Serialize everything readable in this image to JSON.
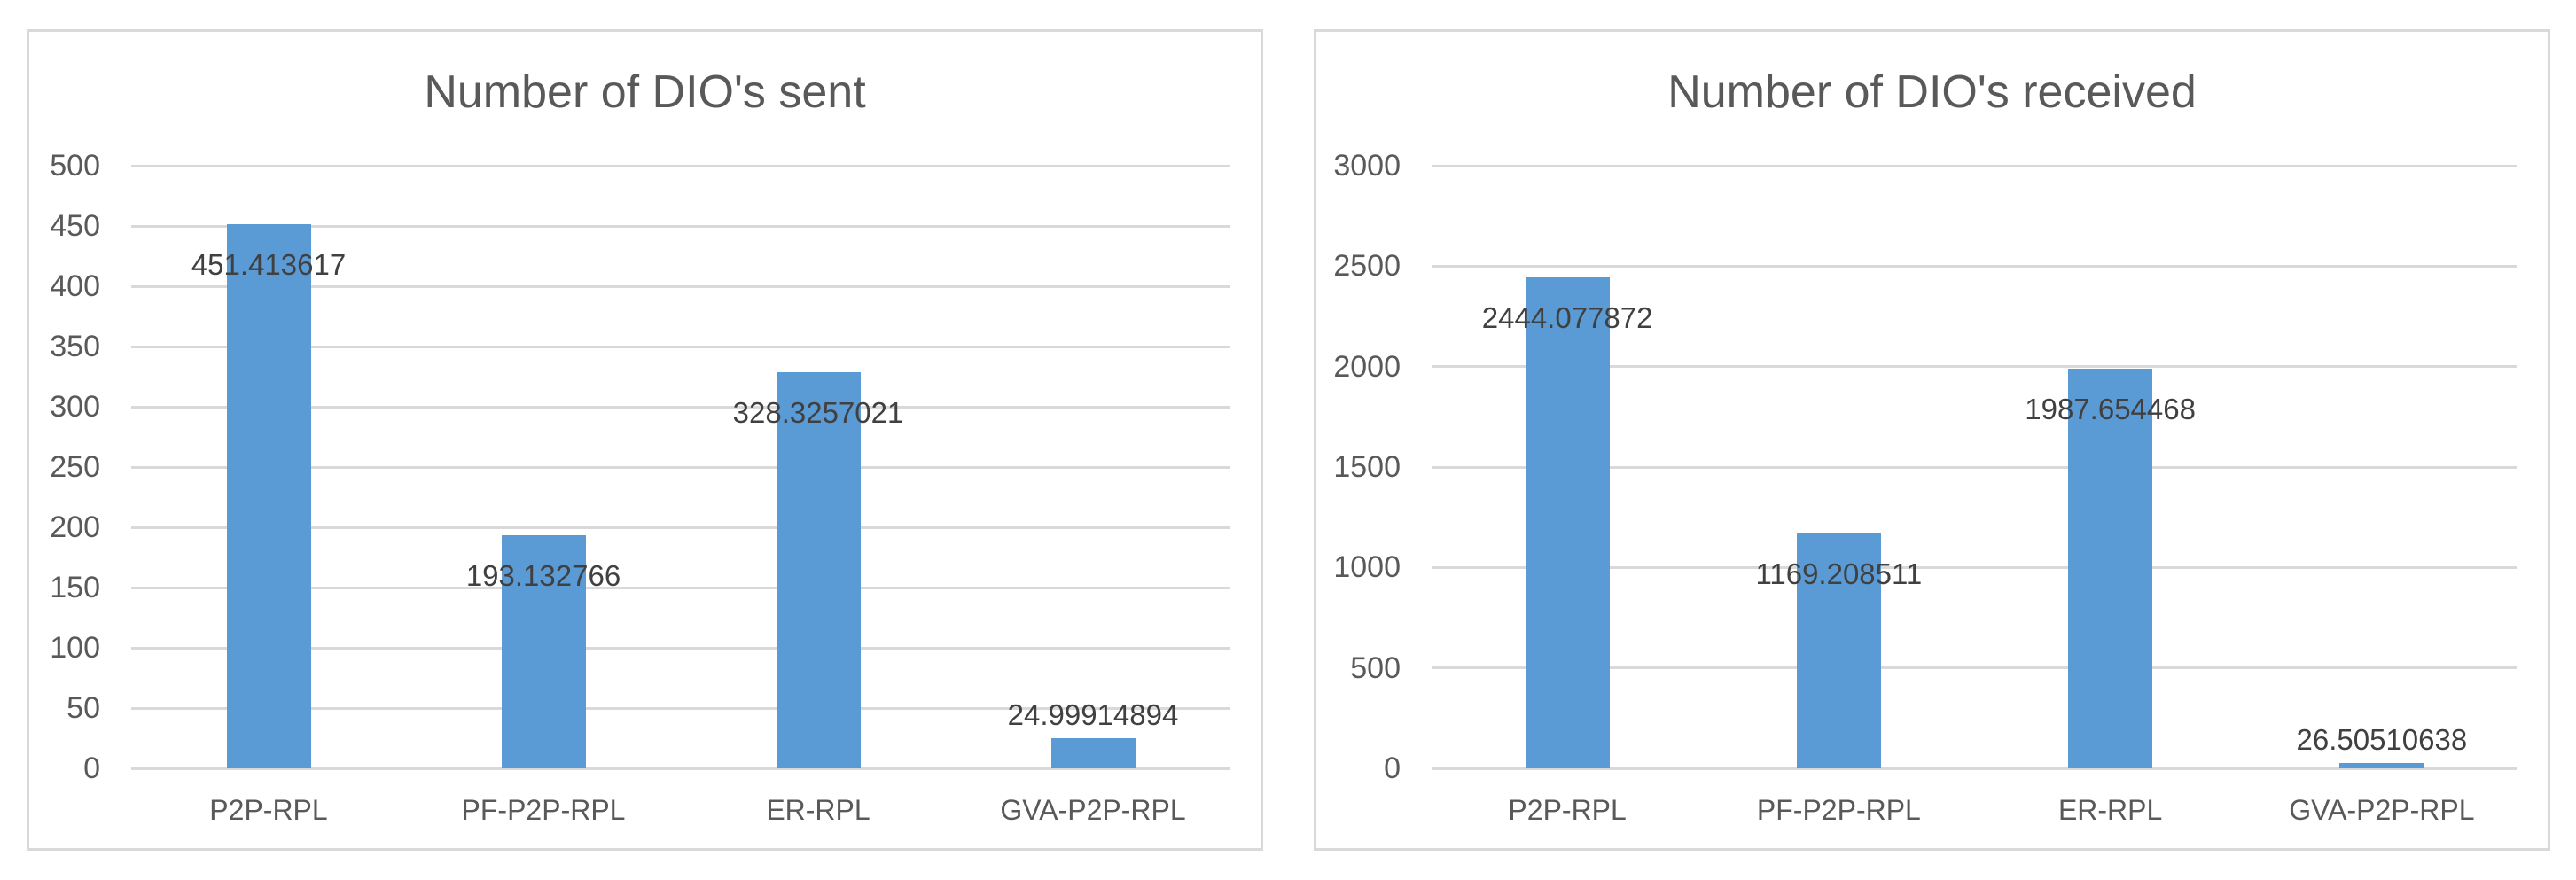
{
  "style": {
    "bar_color": "#5B9BD5",
    "gridline_color": "#D9D9D9",
    "panel_border_color": "#D9D9D9",
    "title_color": "#595959",
    "axis_text_color": "#595959",
    "data_label_color": "#404040",
    "background_color": "#FFFFFF"
  },
  "chart_data": [
    {
      "type": "bar",
      "title": "Number of DIO's sent",
      "categories": [
        "P2P-RPL",
        "PF-P2P-RPL",
        "ER-RPL",
        "GVA-P2P-RPL"
      ],
      "series": [
        {
          "name": "Number of DIO's sent",
          "values": [
            451.413617,
            193.132766,
            328.3257021,
            24.99914894
          ]
        }
      ],
      "value_labels": [
        "451.413617",
        "193.132766",
        "328.3257021",
        "24.99914894"
      ],
      "xlabel": "",
      "ylabel": "",
      "ylim": [
        0,
        500
      ],
      "y_ticks": [
        0,
        50,
        100,
        150,
        200,
        250,
        300,
        350,
        400,
        450,
        500
      ],
      "grid": "horizontal",
      "legend": "none"
    },
    {
      "type": "bar",
      "title": "Number of DIO's received",
      "categories": [
        "P2P-RPL",
        "PF-P2P-RPL",
        "ER-RPL",
        "GVA-P2P-RPL"
      ],
      "series": [
        {
          "name": "Number of DIO's received",
          "values": [
            2444.077872,
            1169.208511,
            1987.654468,
            26.50510638
          ]
        }
      ],
      "value_labels": [
        "2444.077872",
        "1169.208511",
        "1987.654468",
        "26.50510638"
      ],
      "xlabel": "",
      "ylabel": "",
      "ylim": [
        0,
        3000
      ],
      "y_ticks": [
        0,
        500,
        1000,
        1500,
        2000,
        2500,
        3000
      ],
      "grid": "horizontal",
      "legend": "none"
    }
  ]
}
